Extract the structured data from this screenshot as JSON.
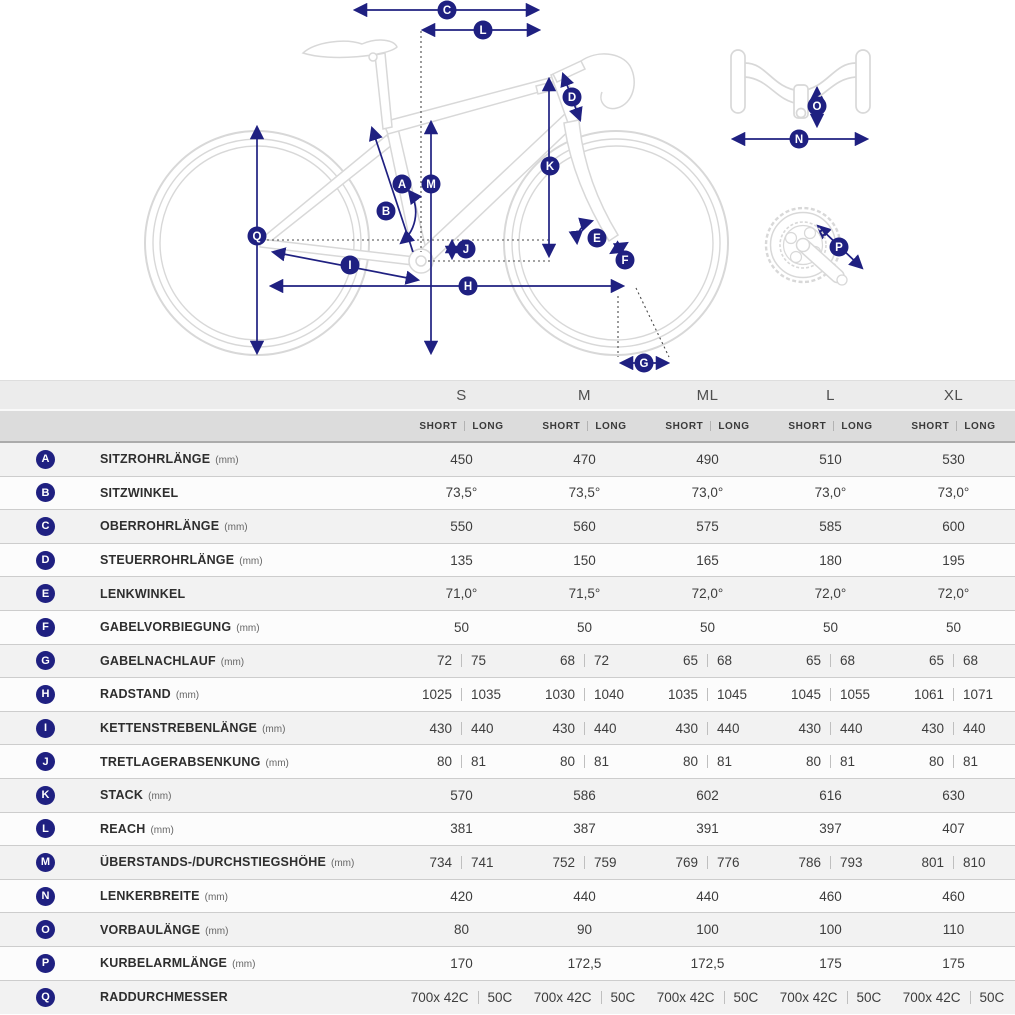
{
  "diagram": {
    "badges": {
      "A": "A",
      "B": "B",
      "C": "C",
      "D": "D",
      "E": "E",
      "F": "F",
      "G": "G",
      "H": "H",
      "I": "I",
      "J": "J",
      "K": "K",
      "L": "L",
      "M": "M",
      "N": "N",
      "O": "O",
      "P": "P",
      "Q": "Q"
    }
  },
  "colors": {
    "accent": "#1f2081",
    "bike_outline": "#d8d8d8",
    "row_stripe": "#f2f2f2"
  },
  "table": {
    "sizes": [
      "S",
      "M",
      "ML",
      "L",
      "XL"
    ],
    "fit_labels": {
      "short": "SHORT",
      "long": "LONG"
    },
    "rows": [
      {
        "letter": "A",
        "label": "SITZROHRLÄNGE",
        "unit": "(mm)",
        "type": "single",
        "values": [
          "450",
          "470",
          "490",
          "510",
          "530"
        ]
      },
      {
        "letter": "B",
        "label": "SITZWINKEL",
        "unit": "",
        "type": "single",
        "values": [
          "73,5°",
          "73,5°",
          "73,0°",
          "73,0°",
          "73,0°"
        ]
      },
      {
        "letter": "C",
        "label": "OBERROHRLÄNGE",
        "unit": "(mm)",
        "type": "single",
        "values": [
          "550",
          "560",
          "575",
          "585",
          "600"
        ]
      },
      {
        "letter": "D",
        "label": "STEUERROHRLÄNGE",
        "unit": "(mm)",
        "type": "single",
        "values": [
          "135",
          "150",
          "165",
          "180",
          "195"
        ]
      },
      {
        "letter": "E",
        "label": "LENKWINKEL",
        "unit": "",
        "type": "single",
        "values": [
          "71,0°",
          "71,5°",
          "72,0°",
          "72,0°",
          "72,0°"
        ]
      },
      {
        "letter": "F",
        "label": "GABELVORBIEGUNG",
        "unit": "(mm)",
        "type": "single",
        "values": [
          "50",
          "50",
          "50",
          "50",
          "50"
        ]
      },
      {
        "letter": "G",
        "label": "GABELNACHLAUF",
        "unit": "(mm)",
        "type": "pair",
        "values": [
          [
            "72",
            "75"
          ],
          [
            "68",
            "72"
          ],
          [
            "65",
            "68"
          ],
          [
            "65",
            "68"
          ],
          [
            "65",
            "68"
          ]
        ]
      },
      {
        "letter": "H",
        "label": "RADSTAND",
        "unit": "(mm)",
        "type": "pair",
        "values": [
          [
            "1025",
            "1035"
          ],
          [
            "1030",
            "1040"
          ],
          [
            "1035",
            "1045"
          ],
          [
            "1045",
            "1055"
          ],
          [
            "1061",
            "1071"
          ]
        ]
      },
      {
        "letter": "I",
        "label": "KETTENSTREBENLÄNGE",
        "unit": "(mm)",
        "type": "pair",
        "values": [
          [
            "430",
            "440"
          ],
          [
            "430",
            "440"
          ],
          [
            "430",
            "440"
          ],
          [
            "430",
            "440"
          ],
          [
            "430",
            "440"
          ]
        ]
      },
      {
        "letter": "J",
        "label": "TRETLAGERABSENKUNG",
        "unit": "(mm)",
        "type": "pair",
        "values": [
          [
            "80",
            "81"
          ],
          [
            "80",
            "81"
          ],
          [
            "80",
            "81"
          ],
          [
            "80",
            "81"
          ],
          [
            "80",
            "81"
          ]
        ]
      },
      {
        "letter": "K",
        "label": "STACK",
        "unit": "(mm)",
        "type": "single",
        "values": [
          "570",
          "586",
          "602",
          "616",
          "630"
        ]
      },
      {
        "letter": "L",
        "label": "REACH",
        "unit": "(mm)",
        "type": "single",
        "values": [
          "381",
          "387",
          "391",
          "397",
          "407"
        ]
      },
      {
        "letter": "M",
        "label": "ÜBERSTANDS-/DURCHSTIEGSHÖHE",
        "unit": "(mm)",
        "type": "pair",
        "values": [
          [
            "734",
            "741"
          ],
          [
            "752",
            "759"
          ],
          [
            "769",
            "776"
          ],
          [
            "786",
            "793"
          ],
          [
            "801",
            "810"
          ]
        ]
      },
      {
        "letter": "N",
        "label": "LENKERBREITE",
        "unit": "(mm)",
        "type": "single",
        "values": [
          "420",
          "440",
          "440",
          "460",
          "460"
        ]
      },
      {
        "letter": "O",
        "label": "VORBAULÄNGE",
        "unit": "(mm)",
        "type": "single",
        "values": [
          "80",
          "90",
          "100",
          "100",
          "110"
        ]
      },
      {
        "letter": "P",
        "label": "KURBELARMLÄNGE",
        "unit": "(mm)",
        "type": "single",
        "values": [
          "170",
          "172,5",
          "172,5",
          "175",
          "175"
        ]
      },
      {
        "letter": "Q",
        "label": "RADDURCHMESSER",
        "unit": "",
        "type": "pair",
        "values": [
          [
            "700x 42C",
            "50C"
          ],
          [
            "700x 42C",
            "50C"
          ],
          [
            "700x 42C",
            "50C"
          ],
          [
            "700x 42C",
            "50C"
          ],
          [
            "700x 42C",
            "50C"
          ]
        ]
      }
    ]
  }
}
